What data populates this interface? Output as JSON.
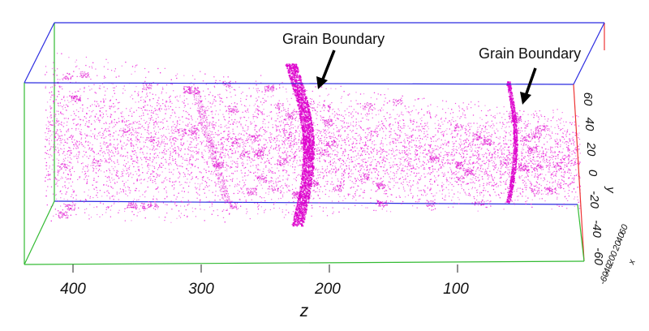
{
  "annotations": [
    {
      "id": "gb1",
      "text": "Grain Boundary"
    },
    {
      "id": "gb2",
      "text": "Grain Boundary"
    }
  ],
  "axes": {
    "z": {
      "label": "z",
      "ticks": [
        "400",
        "300",
        "200",
        "100"
      ]
    },
    "y": {
      "label": "y",
      "ticks": [
        "60",
        "40",
        "20",
        "0",
        "-20",
        "-40",
        "-60"
      ]
    },
    "x": {
      "label": "x",
      "ticks": [
        "-60",
        "-40",
        "-20",
        "0",
        "20",
        "40",
        "60"
      ]
    }
  },
  "colors": {
    "atoms": "#ee33dd",
    "atoms_dense": "#dd00cc",
    "box_blue": "#2a2ae0",
    "box_green": "#33bb33",
    "box_red": "#ee3333",
    "arrow": "#000000"
  }
}
